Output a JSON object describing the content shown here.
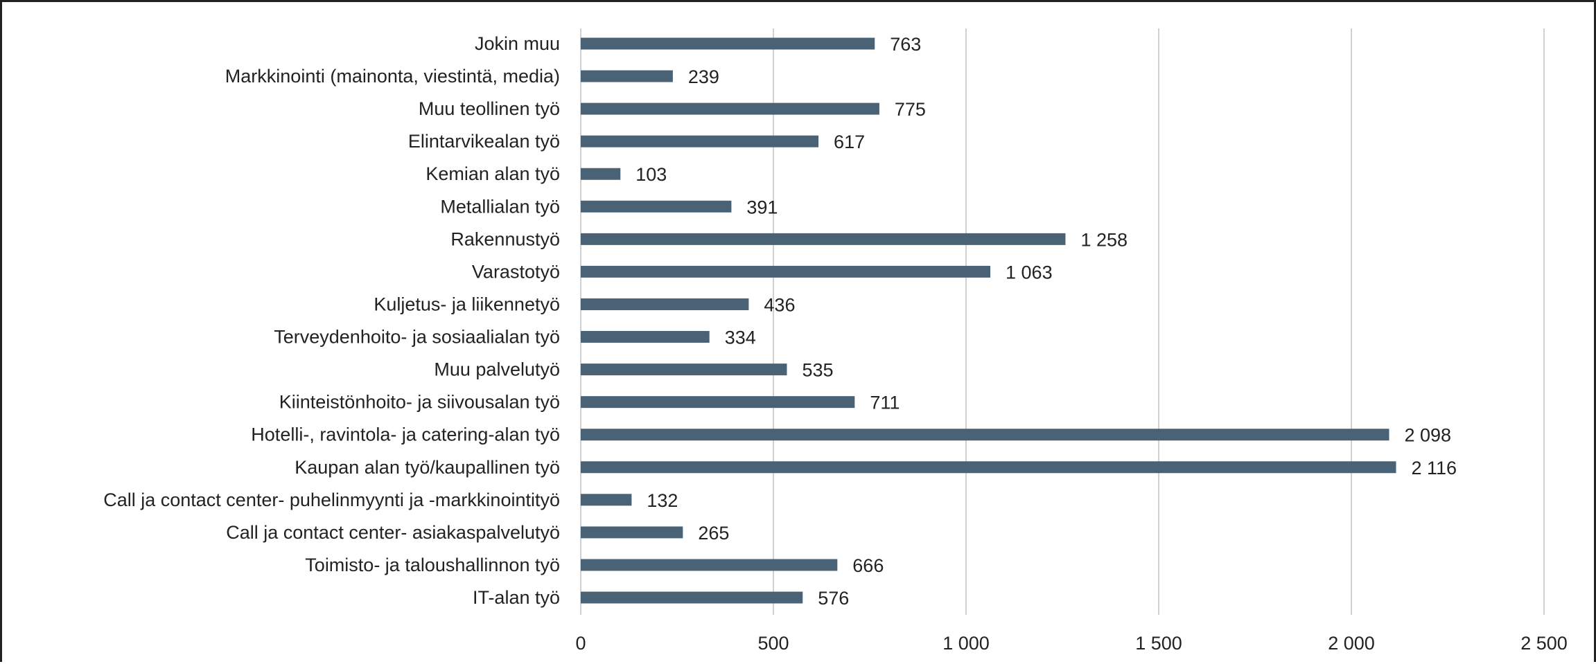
{
  "chart_data": {
    "type": "bar",
    "orientation": "horizontal",
    "categories": [
      "Jokin muu",
      "Markkinointi (mainonta, viestintä, media)",
      "Muu teollinen työ",
      "Elintarvikealan työ",
      "Kemian alan työ",
      "Metallialan työ",
      "Rakennustyö",
      "Varastotyö",
      "Kuljetus- ja liikennetyö",
      "Terveydenhoito- ja sosiaalialan työ",
      "Muu palvelutyö",
      "Kiinteistönhoito- ja siivousalan työ",
      "Hotelli-, ravintola- ja catering-alan työ",
      "Kaupan alan työ/kaupallinen työ",
      "Call ja contact center- puhelinmyynti ja -markkinointityö",
      "Call ja contact center- asiakaspalvelutyö",
      "Toimisto- ja taloushallinnon työ",
      "IT-alan työ"
    ],
    "values": [
      763,
      239,
      775,
      617,
      103,
      391,
      1258,
      1063,
      436,
      334,
      535,
      711,
      2098,
      2116,
      132,
      265,
      666,
      576
    ],
    "value_labels": [
      "763",
      "239",
      "775",
      "617",
      "103",
      "391",
      "1 258",
      "1 063",
      "436",
      "334",
      "535",
      "711",
      "2 098",
      "2 116",
      "132",
      "265",
      "666",
      "576"
    ],
    "xlim": [
      0,
      2500
    ],
    "x_ticks": [
      0,
      500,
      1000,
      1500,
      2000,
      2500
    ],
    "x_tick_labels": [
      "0",
      "500",
      "1 000",
      "1 500",
      "2 000",
      "2 500"
    ],
    "bar_color": "#4a6275",
    "grid": true,
    "legend": "none",
    "title": "",
    "xlabel": "",
    "ylabel": ""
  }
}
